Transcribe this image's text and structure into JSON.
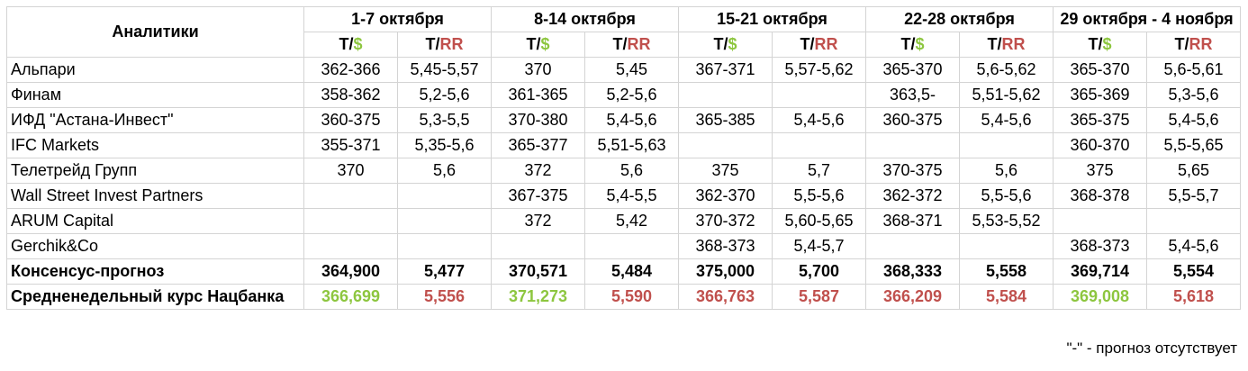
{
  "table": {
    "analyst_header": "Аналитики",
    "weeks": [
      "1-7 октября",
      "8-14 октября",
      "15-21 октября",
      "22-28 октября",
      "29 октября - 4 ноября"
    ],
    "sub_headers": {
      "usd_prefix": "Т/",
      "usd_symbol": "$",
      "rr_prefix": "Т/",
      "rr_symbol": "RR"
    },
    "rows": [
      {
        "name": "Альпари",
        "cells": [
          "362-366",
          "5,45-5,57",
          "370",
          "5,45",
          "367-371",
          "5,57-5,62",
          "365-370",
          "5,6-5,62",
          "365-370",
          "5,6-5,61"
        ]
      },
      {
        "name": "Финам",
        "cells": [
          "358-362",
          "5,2-5,6",
          "361-365",
          "5,2-5,6",
          "",
          "",
          "363,5-",
          "5,51-5,62",
          "365-369",
          "5,3-5,6"
        ]
      },
      {
        "name": "ИФД \"Астана-Инвест\"",
        "cells": [
          "360-375",
          "5,3-5,5",
          "370-380",
          "5,4-5,6",
          "365-385",
          "5,4-5,6",
          "360-375",
          "5,4-5,6",
          "365-375",
          "5,4-5,6"
        ]
      },
      {
        "name": "IFC Markets",
        "cells": [
          "355-371",
          "5,35-5,6",
          "365-377",
          "5,51-5,63",
          "",
          "",
          "",
          "",
          "360-370",
          "5,5-5,65"
        ]
      },
      {
        "name": "Телетрейд Групп",
        "cells": [
          "370",
          "5,6",
          "372",
          "5,6",
          "375",
          "5,7",
          "370-375",
          "5,6",
          "375",
          "5,65"
        ]
      },
      {
        "name": "Wall Street Invest Partners",
        "cells": [
          "",
          "",
          "367-375",
          "5,4-5,5",
          "362-370",
          "5,5-5,6",
          "362-372",
          "5,5-5,6",
          "368-378",
          "5,5-5,7"
        ]
      },
      {
        "name": "ARUM Capital",
        "cells": [
          "",
          "",
          "372",
          "5,42",
          "370-372",
          "5,60-5,65",
          "368-371",
          "5,53-5,52",
          "",
          ""
        ]
      },
      {
        "name": "Gerchik&Co",
        "cells": [
          "",
          "",
          "",
          "",
          "368-373",
          "5,4-5,7",
          "",
          "",
          "368-373",
          "5,4-5,6"
        ]
      }
    ],
    "consensus": {
      "name": "Консенсус-прогноз",
      "cells": [
        "364,900",
        "5,477",
        "370,571",
        "5,484",
        "375,000",
        "5,700",
        "368,333",
        "5,558",
        "369,714",
        "5,554"
      ]
    },
    "actual": {
      "name": "Средненедельный курс Нацбанка",
      "cells": [
        "366,699",
        "5,556",
        "371,273",
        "5,590",
        "366,763",
        "5,587",
        "366,209",
        "5,584",
        "369,008",
        "5,618"
      ],
      "cell_colors": [
        "#8dc63f",
        "#c0504d",
        "#8dc63f",
        "#c0504d",
        "#c0504d",
        "#c0504d",
        "#c0504d",
        "#c0504d",
        "#8dc63f",
        "#c0504d"
      ]
    }
  },
  "footnote": "\"-\" - прогноз отсутствует",
  "colors": {
    "green": "#8dc63f",
    "red": "#c0504d",
    "border": "#d4d4d4"
  }
}
